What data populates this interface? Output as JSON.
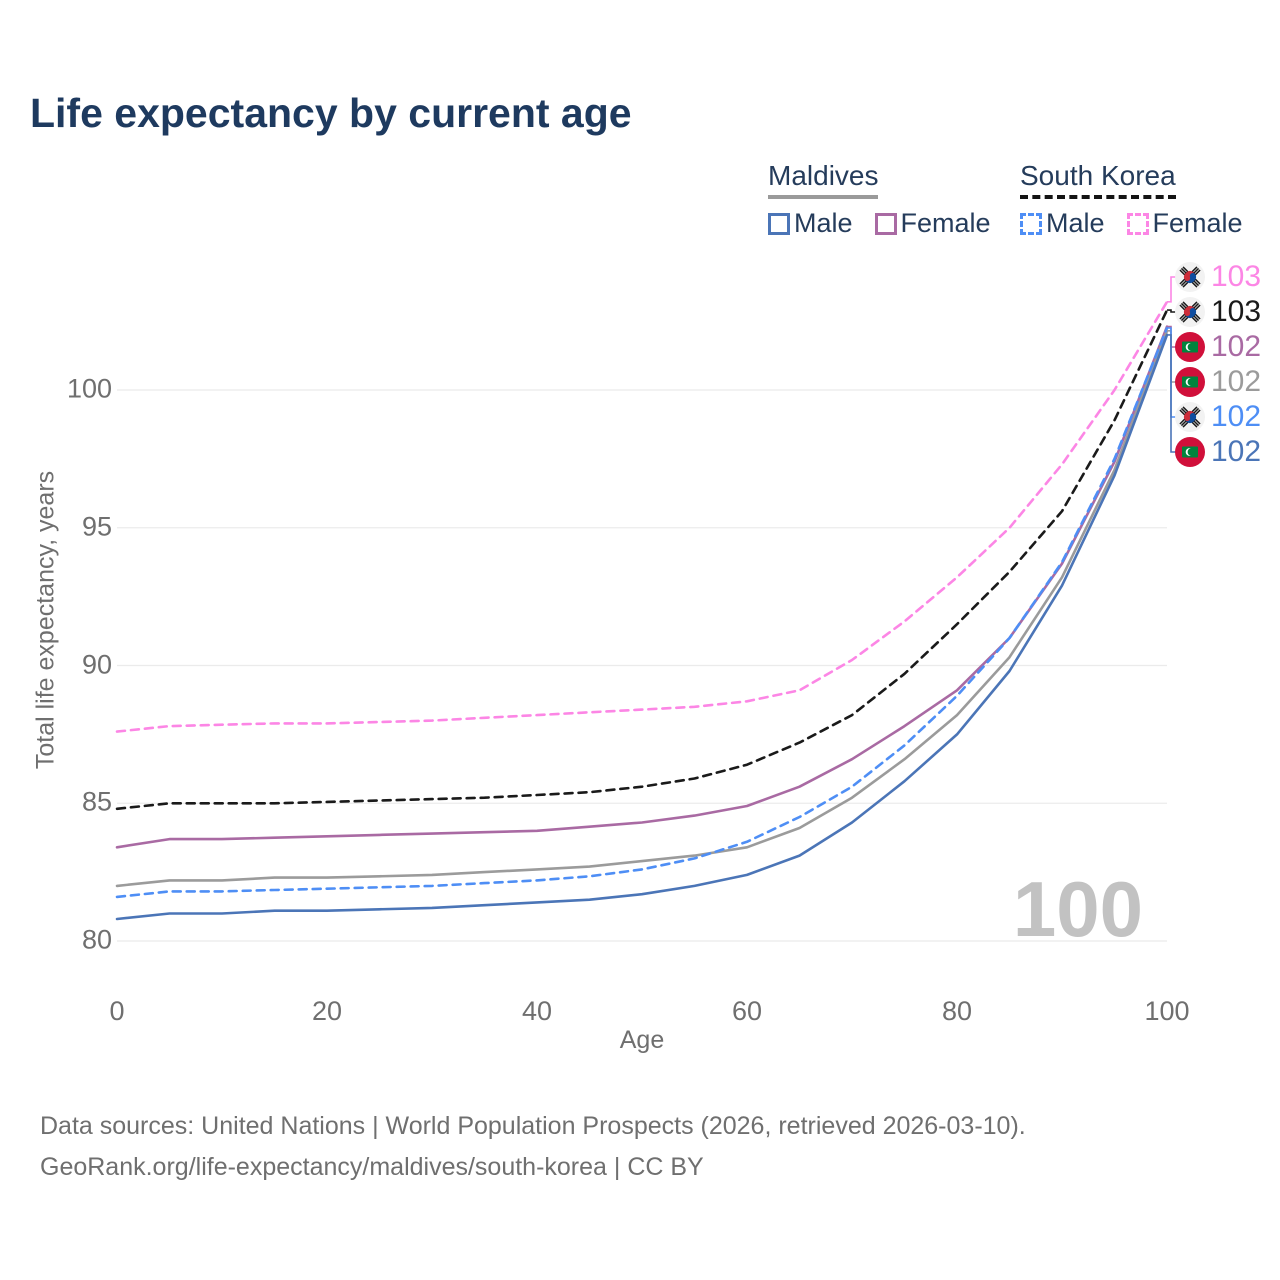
{
  "title": "Life expectancy by current age",
  "legend": {
    "groups": [
      {
        "label": "Maldives",
        "line_style": "solid",
        "underline_color": "#9a9a9a",
        "items": [
          {
            "label": "Male",
            "color": "#4b75b7",
            "dash": false
          },
          {
            "label": "Female",
            "color": "#a96aa3",
            "dash": false
          }
        ]
      },
      {
        "label": "South Korea",
        "line_style": "dashed",
        "underline_color": "#141414",
        "items": [
          {
            "label": "Male",
            "color": "#4e8ef5",
            "dash": true
          },
          {
            "label": "Female",
            "color": "#fc86e5",
            "dash": true
          }
        ]
      }
    ]
  },
  "chart_data": {
    "type": "line",
    "title": "Life expectancy by current age",
    "xlabel": "Age",
    "ylabel": "Total life expectancy, years",
    "xlim": [
      0,
      100
    ],
    "ylim": [
      80,
      103.5
    ],
    "x_ticks": [
      0,
      20,
      40,
      60,
      80,
      100
    ],
    "y_ticks": [
      80,
      85,
      90,
      95,
      100
    ],
    "grid": "horizontal",
    "legend_position": "top-right",
    "x": [
      0,
      5,
      10,
      15,
      20,
      25,
      30,
      35,
      40,
      45,
      50,
      55,
      60,
      65,
      70,
      75,
      80,
      85,
      90,
      95,
      100
    ],
    "series": [
      {
        "name": "South Korea Female",
        "country": "South Korea",
        "sex": "Female",
        "color": "#fc86e5",
        "dash": true,
        "values": [
          87.6,
          87.8,
          87.85,
          87.9,
          87.9,
          87.95,
          88.0,
          88.1,
          88.2,
          88.3,
          88.4,
          88.5,
          88.7,
          89.1,
          90.2,
          91.6,
          93.2,
          95.0,
          97.3,
          100.0,
          103.2
        ]
      },
      {
        "name": "South Korea Both sexes",
        "country": "South Korea",
        "sex": "Both",
        "color": "#1a1a1a",
        "dash": true,
        "values": [
          84.8,
          85.0,
          85.0,
          85.0,
          85.05,
          85.1,
          85.15,
          85.2,
          85.3,
          85.4,
          85.6,
          85.9,
          86.4,
          87.2,
          88.2,
          89.7,
          91.5,
          93.4,
          95.6,
          98.9,
          102.9
        ]
      },
      {
        "name": "Maldives Female",
        "country": "Maldives",
        "sex": "Female",
        "color": "#a96aa3",
        "dash": false,
        "values": [
          83.4,
          83.7,
          83.7,
          83.75,
          83.8,
          83.85,
          83.9,
          83.95,
          84.0,
          84.15,
          84.3,
          84.55,
          84.9,
          85.6,
          86.6,
          87.8,
          89.1,
          91.0,
          93.7,
          97.4,
          102.3
        ]
      },
      {
        "name": "Maldives Both sexes",
        "country": "Maldives",
        "sex": "Both",
        "color": "#9b9b9b",
        "dash": false,
        "values": [
          82.0,
          82.2,
          82.2,
          82.3,
          82.3,
          82.35,
          82.4,
          82.5,
          82.6,
          82.7,
          82.9,
          83.1,
          83.4,
          84.1,
          85.2,
          86.6,
          88.2,
          90.3,
          93.2,
          97.1,
          102.15
        ]
      },
      {
        "name": "South Korea Male",
        "country": "South Korea",
        "sex": "Male",
        "color": "#4e8ef5",
        "dash": true,
        "values": [
          81.6,
          81.8,
          81.8,
          81.85,
          81.9,
          81.95,
          82.0,
          82.1,
          82.2,
          82.35,
          82.6,
          83.0,
          83.6,
          84.5,
          85.6,
          87.1,
          88.9,
          91.0,
          93.75,
          97.5,
          102.25
        ]
      },
      {
        "name": "Maldives Male",
        "country": "Maldives",
        "sex": "Male",
        "color": "#4b75b7",
        "dash": false,
        "values": [
          80.8,
          81.0,
          81.0,
          81.1,
          81.1,
          81.15,
          81.2,
          81.3,
          81.4,
          81.5,
          81.7,
          82.0,
          82.4,
          83.1,
          84.3,
          85.8,
          87.5,
          89.8,
          92.9,
          96.9,
          102.0
        ]
      }
    ]
  },
  "end_labels": [
    {
      "value": "103",
      "color": "#fc86e5",
      "flag": "south-korea-flag-icon"
    },
    {
      "value": "103",
      "color": "#1a1a1a",
      "flag": "south-korea-flag-icon"
    },
    {
      "value": "102",
      "color": "#a96aa3",
      "flag": "maldives-flag-icon"
    },
    {
      "value": "102",
      "color": "#9b9b9b",
      "flag": "maldives-flag-icon"
    },
    {
      "value": "102",
      "color": "#4e8ef5",
      "flag": "south-korea-flag-icon"
    },
    {
      "value": "102",
      "color": "#4b75b7",
      "flag": "maldives-flag-icon"
    }
  ],
  "age_counter": "100",
  "axis": {
    "xlabel": "Age",
    "ylabel": "Total life expectancy, years"
  },
  "footer": {
    "line1": "Data sources: United Nations | World Population Prospects (2026, retrieved 2026-03-10).",
    "line2": "GeoRank.org/life-expectancy/maldives/south-korea | CC BY"
  }
}
